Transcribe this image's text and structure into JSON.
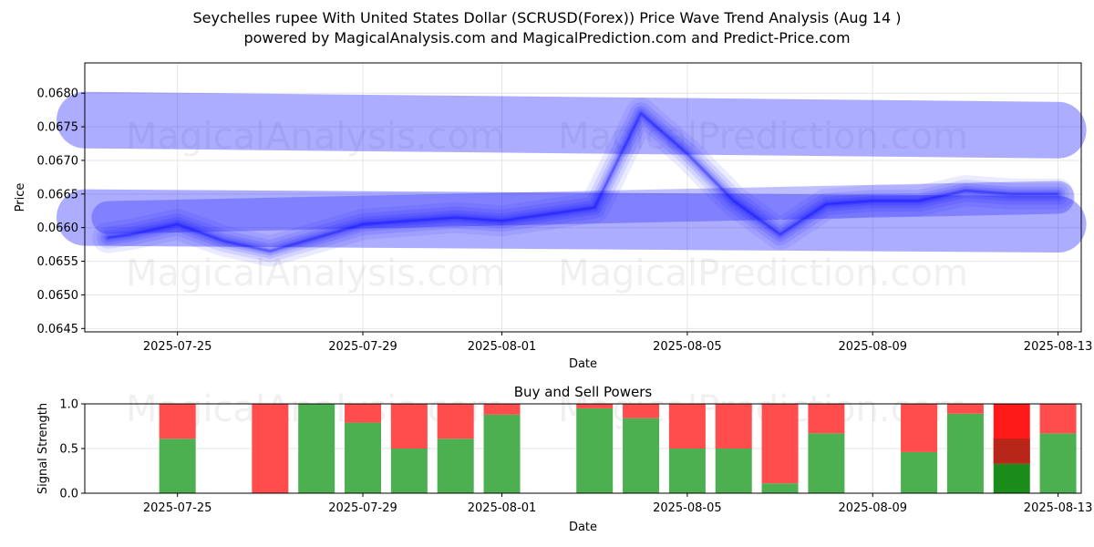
{
  "figure": {
    "title_line1": "Seychelles rupee With United States Dollar (SCRUSD(Forex)) Price Wave Trend Analysis (Aug 14 )",
    "title_line2": "powered by MagicalAnalysis.com and MagicalPrediction.com and Predict-Price.com",
    "watermarks": [
      "MagicalAnalysis.com",
      "MagicalPrediction.com"
    ]
  },
  "chart_data": [
    {
      "type": "line",
      "title": "",
      "xlabel": "Date",
      "ylabel": "Price",
      "xlim": [
        "2025-07-23",
        "2025-08-13.5"
      ],
      "ylim": [
        0.06445,
        0.06845
      ],
      "x_ticks": [
        "2025-07-25",
        "2025-07-29",
        "2025-08-01",
        "2025-08-05",
        "2025-08-09",
        "2025-08-13"
      ],
      "y_ticks": [
        0.0645,
        0.065,
        0.0655,
        0.066,
        0.0665,
        0.067,
        0.0675,
        0.068
      ],
      "grid": true,
      "color": "#0000ff",
      "series": [
        {
          "x": [
            "2025-07-23.5",
            "2025-07-24",
            "2025-07-25",
            "2025-07-26",
            "2025-07-27",
            "2025-07-28",
            "2025-07-29",
            "2025-07-30",
            "2025-07-31",
            "2025-08-01",
            "2025-08-02",
            "2025-08-03",
            "2025-08-04",
            "2025-08-05",
            "2025-08-06",
            "2025-08-07",
            "2025-08-08",
            "2025-08-09",
            "2025-08-10",
            "2025-08-11",
            "2025-08-12",
            "2025-08-13"
          ],
          "y": [
            0.06585,
            0.0659,
            0.06605,
            0.0658,
            0.06565,
            0.06585,
            0.06605,
            0.0661,
            0.06615,
            0.0661,
            0.0662,
            0.0663,
            0.0677,
            0.0671,
            0.0664,
            0.0659,
            0.06635,
            0.0664,
            0.0664,
            0.06655,
            0.0665,
            0.0665
          ]
        },
        {
          "x": [
            "2025-07-23.5",
            "2025-08-13"
          ],
          "y": [
            0.06615,
            0.06645
          ]
        },
        {
          "x": [
            "2025-07-23",
            "2025-08-13"
          ],
          "y": [
            0.0676,
            0.06745
          ]
        },
        {
          "x": [
            "2025-07-23",
            "2025-08-13"
          ],
          "y": [
            0.06615,
            0.06605
          ]
        }
      ]
    },
    {
      "type": "bar",
      "title": "Buy and Sell Powers",
      "xlabel": "Date",
      "ylabel": "Signal Strength",
      "ylim": [
        0,
        1
      ],
      "y_ticks": [
        0.0,
        0.5,
        1.0
      ],
      "x_ticks": [
        "2025-07-25",
        "2025-07-29",
        "2025-08-01",
        "2025-08-05",
        "2025-08-09",
        "2025-08-13"
      ],
      "grid": true,
      "buy_color": "#4caf50",
      "sell_color": "#ff4c4c",
      "categories": [
        "2025-07-25",
        "2025-07-27",
        "2025-07-28",
        "2025-07-29",
        "2025-07-30",
        "2025-07-31",
        "2025-08-01",
        "2025-08-03",
        "2025-08-04",
        "2025-08-05",
        "2025-08-06",
        "2025-08-07",
        "2025-08-08",
        "2025-08-10",
        "2025-08-11",
        "2025-08-12",
        "2025-08-13"
      ],
      "series": [
        {
          "name": "Buy",
          "values": [
            0.61,
            0.0,
            1.0,
            0.79,
            0.5,
            0.61,
            0.88,
            0.95,
            0.84,
            0.5,
            0.5,
            0.11,
            0.67,
            0.46,
            0.89,
            0.33,
            0.67
          ]
        },
        {
          "name": "Sell",
          "values": [
            0.39,
            1.0,
            0.0,
            0.21,
            0.5,
            0.39,
            0.12,
            0.05,
            0.16,
            0.5,
            0.5,
            0.89,
            0.33,
            0.54,
            0.11,
            0.67,
            0.33
          ]
        }
      ]
    }
  ]
}
